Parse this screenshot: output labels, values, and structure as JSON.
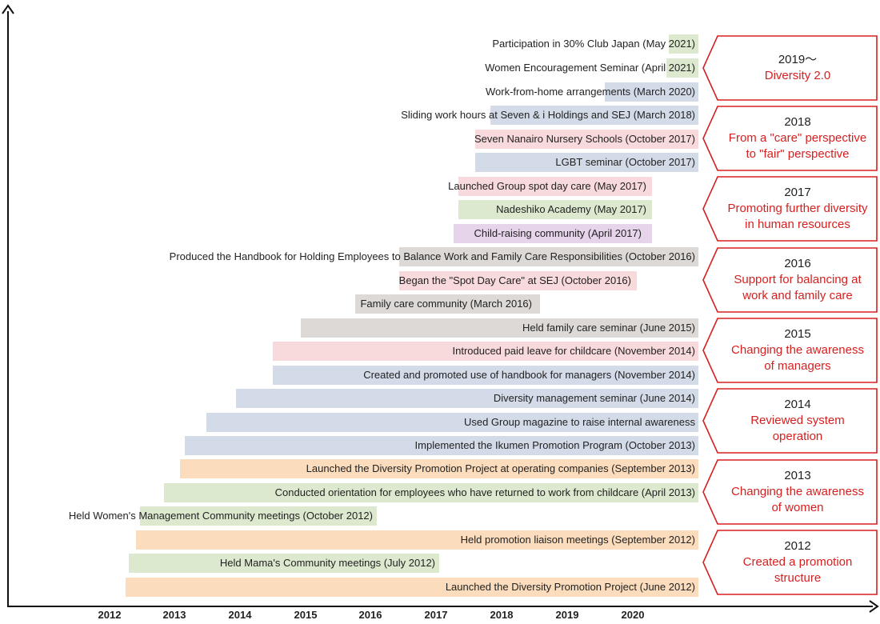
{
  "colors": {
    "green": "#dce9cf",
    "blue": "#d3dbe8",
    "pink": "#f8d9dc",
    "purple": "#e6d4eb",
    "gray": "#ddd9d6",
    "orange": "#fbdcbc",
    "accent_red": "#d71f1f"
  },
  "x_axis": {
    "ticks": [
      "2012",
      "2013",
      "2014",
      "2015",
      "2016",
      "2017",
      "2018",
      "2019",
      "2020"
    ]
  },
  "timeline_items": [
    {
      "label": "Participation in 30% Club Japan (May 2021)",
      "color": "green"
    },
    {
      "label": "Women Encouragement Seminar (April 2021)",
      "color": "green"
    },
    {
      "label": "Work-from-home arrangements (March 2020)",
      "color": "blue"
    },
    {
      "label": "Sliding work hours at Seven & i Holdings and SEJ (March 2018)",
      "color": "blue"
    },
    {
      "label": "Seven Nanairo Nursery Schools (October 2017)",
      "color": "pink"
    },
    {
      "label": "LGBT seminar (October 2017)",
      "color": "blue"
    },
    {
      "label": "Launched Group spot day care (May 2017)",
      "color": "pink"
    },
    {
      "label": "Nadeshiko Academy (May 2017)",
      "color": "green"
    },
    {
      "label": "Child-raising community (April 2017)",
      "color": "purple"
    },
    {
      "label": "Produced the Handbook for Holding Employees to Balance Work and Family Care Responsibilities (October 2016)",
      "color": "gray"
    },
    {
      "label": "Began the \"Spot Day Care\" at SEJ (October 2016)",
      "color": "pink"
    },
    {
      "label": "Family care community (March 2016)",
      "color": "gray"
    },
    {
      "label": "Held family care seminar (June 2015)",
      "color": "gray"
    },
    {
      "label": "Introduced paid leave for childcare (November 2014)",
      "color": "pink"
    },
    {
      "label": "Created and promoted use of handbook for managers (November 2014)",
      "color": "blue"
    },
    {
      "label": "Diversity management seminar (June 2014)",
      "color": "blue"
    },
    {
      "label": "Used Group magazine to raise internal awareness",
      "color": "blue"
    },
    {
      "label": "Implemented the Ikumen Promotion Program (October 2013)",
      "color": "blue"
    },
    {
      "label": "Launched the Diversity Promotion Project at operating companies (September 2013)",
      "color": "orange"
    },
    {
      "label": "Conducted orientation for employees who have returned to work from childcare (April 2013)",
      "color": "green"
    },
    {
      "label": "Held Women's Management Community meetings (October 2012)",
      "color": "green"
    },
    {
      "label": "Held promotion liaison meetings (September 2012)",
      "color": "orange"
    },
    {
      "label": "Held Mama's Community meetings (July 2012)",
      "color": "green"
    },
    {
      "label": "Launched the Diversity Promotion Project (June 2012)",
      "color": "orange"
    }
  ],
  "phases": [
    {
      "year": "2019～",
      "title_lines": [
        "Diversity 2.0"
      ]
    },
    {
      "year": "2018",
      "title_lines": [
        "From a \"care\" perspective",
        "to \"fair\" perspective"
      ]
    },
    {
      "year": "2017",
      "title_lines": [
        "Promoting further diversity",
        "in human resources"
      ]
    },
    {
      "year": "2016",
      "title_lines": [
        "Support for balancing at",
        "work and family care"
      ]
    },
    {
      "year": "2015",
      "title_lines": [
        "Changing the awareness",
        "of managers"
      ]
    },
    {
      "year": "2014",
      "title_lines": [
        "Reviewed system",
        "operation"
      ]
    },
    {
      "year": "2013",
      "title_lines": [
        "Changing the awareness",
        "of women"
      ]
    },
    {
      "year": "2012",
      "title_lines": [
        "Created a promotion",
        "structure"
      ]
    }
  ]
}
